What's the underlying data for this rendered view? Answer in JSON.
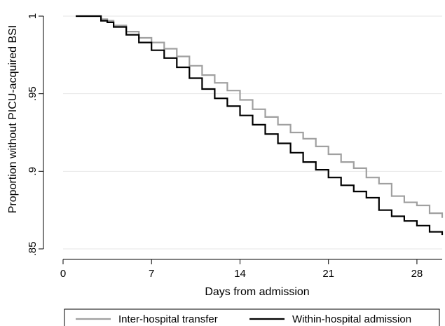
{
  "chart_data": {
    "type": "line",
    "title": "",
    "xlabel": "Days from admission",
    "ylabel": "Proportion without PICU-acquired BSI",
    "xlim": [
      0,
      30
    ],
    "ylim": [
      0.85,
      1.0
    ],
    "xticks": [
      0,
      7,
      14,
      21,
      28
    ],
    "yticks": [
      0.85,
      0.9,
      0.95,
      1.0
    ],
    "xtick_labels": [
      "0",
      "7",
      "14",
      "21",
      "28"
    ],
    "ytick_labels": [
      ".85",
      ".9",
      ".95",
      "1"
    ],
    "grid": "horizontal",
    "legend_position": "bottom",
    "series": [
      {
        "name": "Inter-hospital transfer",
        "color": "#a0a0a0",
        "step": true,
        "x": [
          1,
          3,
          3.5,
          4,
          5,
          6,
          7,
          8,
          9,
          10,
          11,
          12,
          13,
          14,
          15,
          16,
          17,
          18,
          19,
          20,
          21,
          22,
          23,
          24,
          25,
          26,
          27,
          28,
          29,
          30
        ],
        "y": [
          1.0,
          0.998,
          0.997,
          0.994,
          0.99,
          0.986,
          0.983,
          0.979,
          0.974,
          0.968,
          0.962,
          0.957,
          0.952,
          0.946,
          0.94,
          0.935,
          0.93,
          0.925,
          0.921,
          0.916,
          0.911,
          0.906,
          0.902,
          0.896,
          0.892,
          0.884,
          0.88,
          0.878,
          0.873,
          0.87
        ]
      },
      {
        "name": "Within-hospital admission",
        "color": "#000000",
        "step": true,
        "x": [
          1,
          3,
          3.5,
          4,
          5,
          6,
          7,
          8,
          9,
          10,
          11,
          12,
          13,
          14,
          15,
          16,
          17,
          18,
          19,
          20,
          21,
          22,
          23,
          24,
          25,
          26,
          27,
          28,
          29,
          30
        ],
        "y": [
          1.0,
          0.997,
          0.996,
          0.993,
          0.988,
          0.983,
          0.978,
          0.973,
          0.967,
          0.96,
          0.953,
          0.947,
          0.942,
          0.936,
          0.93,
          0.924,
          0.918,
          0.912,
          0.906,
          0.901,
          0.896,
          0.891,
          0.887,
          0.883,
          0.875,
          0.871,
          0.868,
          0.865,
          0.861,
          0.859
        ]
      }
    ]
  }
}
